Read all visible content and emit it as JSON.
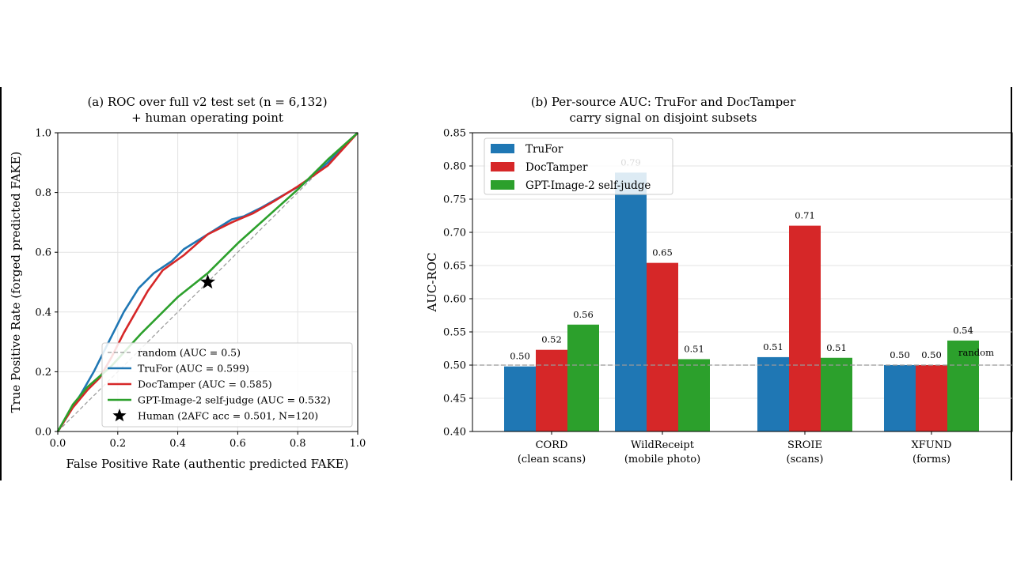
{
  "chart_data": [
    {
      "type": "line",
      "title": "(a) ROC over full v2 test set (n = 6,132)",
      "subtitle": "+ human operating point",
      "xlabel": "False Positive Rate (authentic predicted FAKE)",
      "ylabel": "True Positive Rate (forged predicted FAKE)",
      "xlim": [
        0,
        1
      ],
      "ylim": [
        0,
        1
      ],
      "xticks": [
        "0.0",
        "0.2",
        "0.4",
        "0.6",
        "0.8",
        "1.0"
      ],
      "yticks": [
        "0.0",
        "0.2",
        "0.4",
        "0.6",
        "0.8",
        "1.0"
      ],
      "grid": true,
      "legend_position": "lower-right",
      "series": [
        {
          "name": "random (AUC = 0.5)",
          "color": "#999999",
          "dashed": true,
          "points": [
            [
              0,
              0
            ],
            [
              1,
              1
            ]
          ]
        },
        {
          "name": "TruFor (AUC = 0.599)",
          "color": "#1f77b4",
          "points": [
            [
              0,
              0
            ],
            [
              0.03,
              0.05
            ],
            [
              0.08,
              0.13
            ],
            [
              0.12,
              0.2
            ],
            [
              0.17,
              0.3
            ],
            [
              0.22,
              0.4
            ],
            [
              0.27,
              0.48
            ],
            [
              0.32,
              0.53
            ],
            [
              0.38,
              0.57
            ],
            [
              0.42,
              0.61
            ],
            [
              0.5,
              0.66
            ],
            [
              0.58,
              0.71
            ],
            [
              0.62,
              0.72
            ],
            [
              0.68,
              0.75
            ],
            [
              0.75,
              0.79
            ],
            [
              0.82,
              0.83
            ],
            [
              0.9,
              0.9
            ],
            [
              1,
              1
            ]
          ]
        },
        {
          "name": "DocTamper (AUC = 0.585)",
          "color": "#d62728",
          "points": [
            [
              0,
              0
            ],
            [
              0.05,
              0.08
            ],
            [
              0.1,
              0.14
            ],
            [
              0.14,
              0.18
            ],
            [
              0.18,
              0.25
            ],
            [
              0.22,
              0.33
            ],
            [
              0.26,
              0.4
            ],
            [
              0.3,
              0.47
            ],
            [
              0.35,
              0.54
            ],
            [
              0.42,
              0.59
            ],
            [
              0.5,
              0.66
            ],
            [
              0.58,
              0.7
            ],
            [
              0.65,
              0.73
            ],
            [
              0.72,
              0.77
            ],
            [
              0.8,
              0.82
            ],
            [
              0.9,
              0.89
            ],
            [
              1,
              1
            ]
          ]
        },
        {
          "name": "GPT-Image-2 self-judge (AUC = 0.532)",
          "color": "#2ca02c",
          "points": [
            [
              0,
              0
            ],
            [
              0.05,
              0.09
            ],
            [
              0.1,
              0.15
            ],
            [
              0.18,
              0.22
            ],
            [
              0.28,
              0.33
            ],
            [
              0.4,
              0.45
            ],
            [
              0.5,
              0.53
            ],
            [
              0.6,
              0.63
            ],
            [
              0.7,
              0.72
            ],
            [
              0.8,
              0.81
            ],
            [
              0.9,
              0.91
            ],
            [
              1,
              1
            ]
          ]
        }
      ],
      "markers": [
        {
          "name": "Human (2AFC acc = 0.501, N=120)",
          "symbol": "star",
          "x": 0.5,
          "y": 0.5
        }
      ]
    },
    {
      "type": "bar",
      "title": "(b) Per-source AUC: TruFor and DocTamper",
      "subtitle": "carry signal on disjoint subsets",
      "ylabel": "AUC-ROC",
      "xlabel": "",
      "ylim": [
        0.4,
        0.85
      ],
      "yticks": [
        "0.40",
        "0.45",
        "0.50",
        "0.55",
        "0.60",
        "0.65",
        "0.70",
        "0.75",
        "0.80",
        "0.85"
      ],
      "grid": true,
      "legend_position": "top-left",
      "categories": [
        {
          "name": "CORD",
          "sub": "(clean scans)"
        },
        {
          "name": "WildReceipt",
          "sub": "(mobile photo)"
        },
        {
          "name": "SROIE",
          "sub": "(scans)"
        },
        {
          "name": "XFUND",
          "sub": "(forms)"
        }
      ],
      "series": [
        {
          "name": "TruFor",
          "color": "#1f77b4",
          "values": [
            0.498,
            0.79,
            0.512,
            0.5
          ],
          "labels": [
            "0.50",
            "0.79",
            "0.51",
            "0.50"
          ]
        },
        {
          "name": "DocTamper",
          "color": "#d62728",
          "values": [
            0.523,
            0.654,
            0.71,
            0.5
          ],
          "labels": [
            "0.52",
            "0.65",
            "0.71",
            "0.50"
          ]
        },
        {
          "name": "GPT-Image-2 self-judge",
          "color": "#2ca02c",
          "values": [
            0.561,
            0.509,
            0.511,
            0.537
          ],
          "labels": [
            "0.56",
            "0.51",
            "0.51",
            "0.54"
          ]
        }
      ],
      "reference_line": {
        "value": 0.5,
        "label": "random"
      }
    }
  ]
}
